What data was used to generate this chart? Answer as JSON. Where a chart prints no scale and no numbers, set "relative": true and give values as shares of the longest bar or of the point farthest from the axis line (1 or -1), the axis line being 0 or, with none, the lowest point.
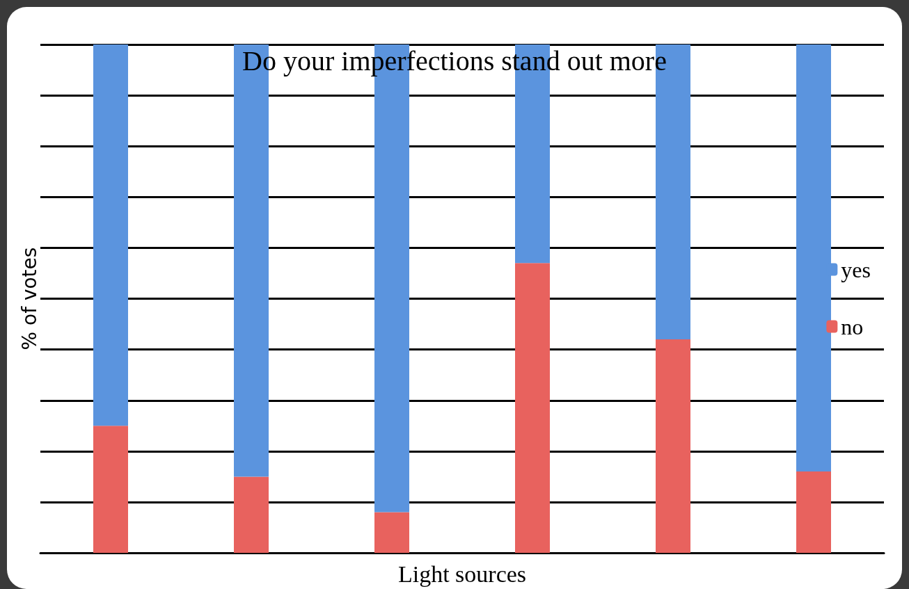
{
  "chart_data": {
    "type": "bar",
    "title": "Do your imperfections stand out more",
    "xlabel": "Light sources",
    "ylabel": "% of votes",
    "categories": [
      null,
      null,
      null,
      null,
      null,
      null
    ],
    "stacked": true,
    "relative": true,
    "grid": "y",
    "legend": "right",
    "series": [
      {
        "name": "no",
        "color": "#e8625e",
        "values": [
          0.25,
          0.15,
          0.08,
          0.57,
          0.42,
          0.16
        ]
      },
      {
        "name": "yes",
        "color": "#5b94de",
        "values": [
          0.75,
          0.85,
          0.92,
          0.43,
          0.58,
          0.84
        ]
      }
    ]
  }
}
